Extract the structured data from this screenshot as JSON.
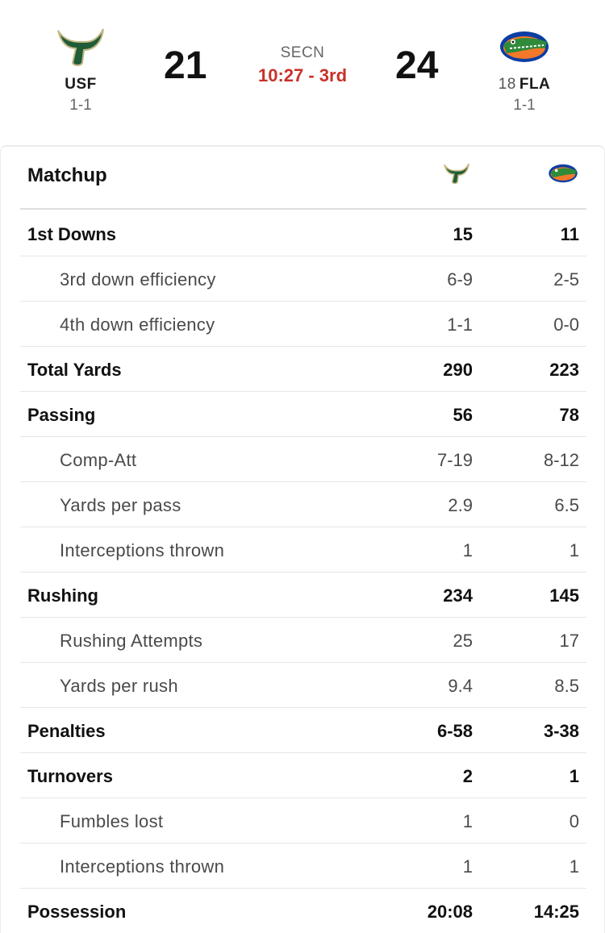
{
  "game": {
    "away": {
      "abbr": "USF",
      "record": "1-1",
      "score": "21",
      "logo_icon": "usf-bull-horns-icon",
      "color": "#1f5c37",
      "accent": "#c5b783"
    },
    "home": {
      "rank": "18",
      "abbr": "FLA",
      "record": "1-1",
      "score": "24",
      "logo_icon": "florida-gator-icon",
      "color": "#0b3ea3",
      "accent": "#f4782a"
    },
    "network": "SECN",
    "clock": "10:27 - 3rd",
    "clock_color": "#c8312a"
  },
  "matchup": {
    "title": "Matchup",
    "rows": [
      {
        "type": "main",
        "label": "1st Downs",
        "away": "15",
        "home": "11"
      },
      {
        "type": "sub",
        "label": "3rd down efficiency",
        "away": "6-9",
        "home": "2-5"
      },
      {
        "type": "sub",
        "label": "4th down efficiency",
        "away": "1-1",
        "home": "0-0"
      },
      {
        "type": "main",
        "label": "Total Yards",
        "away": "290",
        "home": "223"
      },
      {
        "type": "main",
        "label": "Passing",
        "away": "56",
        "home": "78"
      },
      {
        "type": "sub",
        "label": "Comp-Att",
        "away": "7-19",
        "home": "8-12"
      },
      {
        "type": "sub",
        "label": "Yards per pass",
        "away": "2.9",
        "home": "6.5"
      },
      {
        "type": "sub",
        "label": "Interceptions thrown",
        "away": "1",
        "home": "1"
      },
      {
        "type": "main",
        "label": "Rushing",
        "away": "234",
        "home": "145"
      },
      {
        "type": "sub",
        "label": "Rushing Attempts",
        "away": "25",
        "home": "17"
      },
      {
        "type": "sub",
        "label": "Yards per rush",
        "away": "9.4",
        "home": "8.5"
      },
      {
        "type": "main",
        "label": "Penalties",
        "away": "6-58",
        "home": "3-38"
      },
      {
        "type": "main",
        "label": "Turnovers",
        "away": "2",
        "home": "1"
      },
      {
        "type": "sub",
        "label": "Fumbles lost",
        "away": "1",
        "home": "0"
      },
      {
        "type": "sub",
        "label": "Interceptions thrown",
        "away": "1",
        "home": "1"
      },
      {
        "type": "main",
        "label": "Possession",
        "away": "20:08",
        "home": "14:25"
      }
    ]
  }
}
